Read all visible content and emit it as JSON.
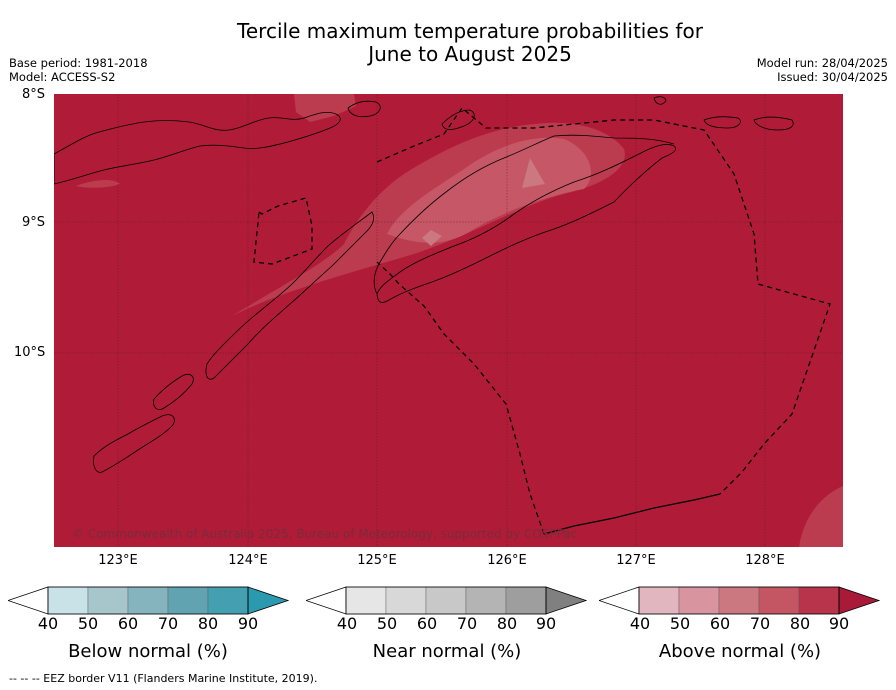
{
  "title_line1": "Tercile maximum temperature probabilities for",
  "title_line2": "June to August 2025",
  "meta": {
    "base_period": "Base period: 1981-2018",
    "model": "Model: ACCESS-S2",
    "model_run": "Model run: 28/04/2025",
    "issued": "Issued: 30/04/2025"
  },
  "axes": {
    "lat_labels": [
      "8°S",
      "9°S",
      "10°S"
    ],
    "lon_labels": [
      "123°E",
      "124°E",
      "125°E",
      "126°E",
      "127°E",
      "128°E"
    ]
  },
  "copyright": "© Commonwealth of Australia 2025, Bureau of Meteorology, supported by COSPPac",
  "colors": {
    "above_90": "#b01c38",
    "above_80": "#bb3b4f",
    "above_70": "#c55766",
    "below": [
      "#c8e2e8",
      "#a6c6cc",
      "#86b4be",
      "#62a3b2",
      "#44a0b1",
      "#2c9aae"
    ],
    "near": [
      "#e6e6e6",
      "#d8d8d8",
      "#c8c8c8",
      "#b4b4b4",
      "#9e9e9e",
      "#808080"
    ],
    "above": [
      "#e2b6bf",
      "#d8949f",
      "#cc7880",
      "#c45664",
      "#b8344a",
      "#a81a37"
    ]
  },
  "colorbars": [
    {
      "id": "below",
      "title": "Below normal (%)",
      "ticks": [
        "40",
        "50",
        "60",
        "70",
        "80",
        "90"
      ]
    },
    {
      "id": "near",
      "title": "Near normal (%)",
      "ticks": [
        "40",
        "50",
        "60",
        "70",
        "80",
        "90"
      ]
    },
    {
      "id": "above",
      "title": "Above normal (%)",
      "ticks": [
        "40",
        "50",
        "60",
        "70",
        "80",
        "90"
      ]
    }
  ],
  "footer": "--  --  -- EEZ border V11 (Flanders Marine Institute, 2019)."
}
